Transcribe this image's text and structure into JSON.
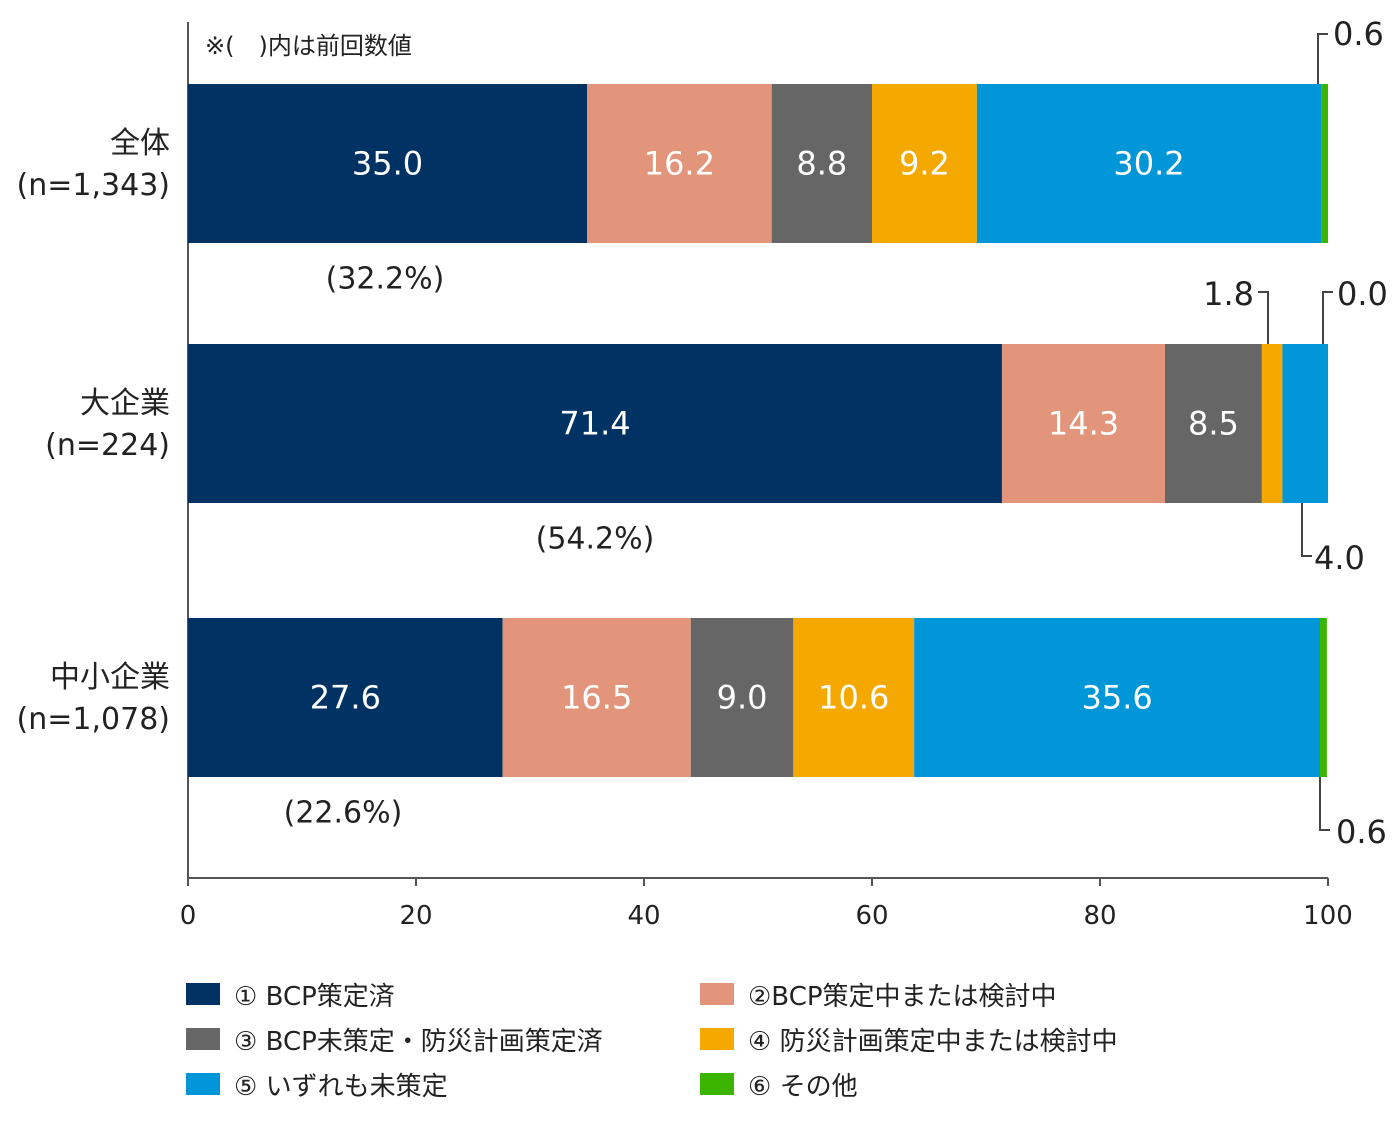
{
  "chart_data": {
    "type": "bar",
    "orientation": "horizontal",
    "stacked": true,
    "note": "※(　)内は前回数値",
    "xlim": [
      0,
      100
    ],
    "x_ticks": [
      "0",
      "20",
      "40",
      "60",
      "80",
      "100"
    ],
    "categories": [
      {
        "name": "全体",
        "n": "(n=1,343)",
        "previous": "(32.2%)"
      },
      {
        "name": "大企業",
        "n": "(n=224)",
        "previous": "(54.2%)"
      },
      {
        "name": "中小企業",
        "n": "(n=1,078)",
        "previous": "(22.6%)"
      }
    ],
    "series": [
      {
        "name": "① BCP策定済",
        "color": "#003263",
        "values": [
          35.0,
          71.4,
          27.6
        ]
      },
      {
        "name": "②BCP策定中または検討中",
        "color": "#E2957A",
        "values": [
          16.2,
          14.3,
          16.5
        ]
      },
      {
        "name": "③ BCP未策定・防災計画策定済",
        "color": "#666666",
        "values": [
          8.8,
          8.5,
          9.0
        ]
      },
      {
        "name": "④ 防災計画策定中または検討中",
        "color": "#F5A800",
        "values": [
          9.2,
          1.8,
          10.6
        ]
      },
      {
        "name": "⑤ いずれも未策定",
        "color": "#0096D8",
        "values": [
          30.2,
          4.0,
          35.6
        ]
      },
      {
        "name": "⑥ その他",
        "color": "#3CB500",
        "values": [
          0.6,
          0.0,
          0.6
        ]
      }
    ],
    "value_labels": [
      [
        "35.0",
        "16.2",
        "8.8",
        "9.2",
        "30.2",
        "0.6"
      ],
      [
        "71.4",
        "14.3",
        "8.5",
        "1.8",
        "4.0",
        "0.0"
      ],
      [
        "27.6",
        "16.5",
        "9.0",
        "10.6",
        "35.6",
        "0.6"
      ]
    ],
    "legend_position": "bottom",
    "grid": false
  }
}
